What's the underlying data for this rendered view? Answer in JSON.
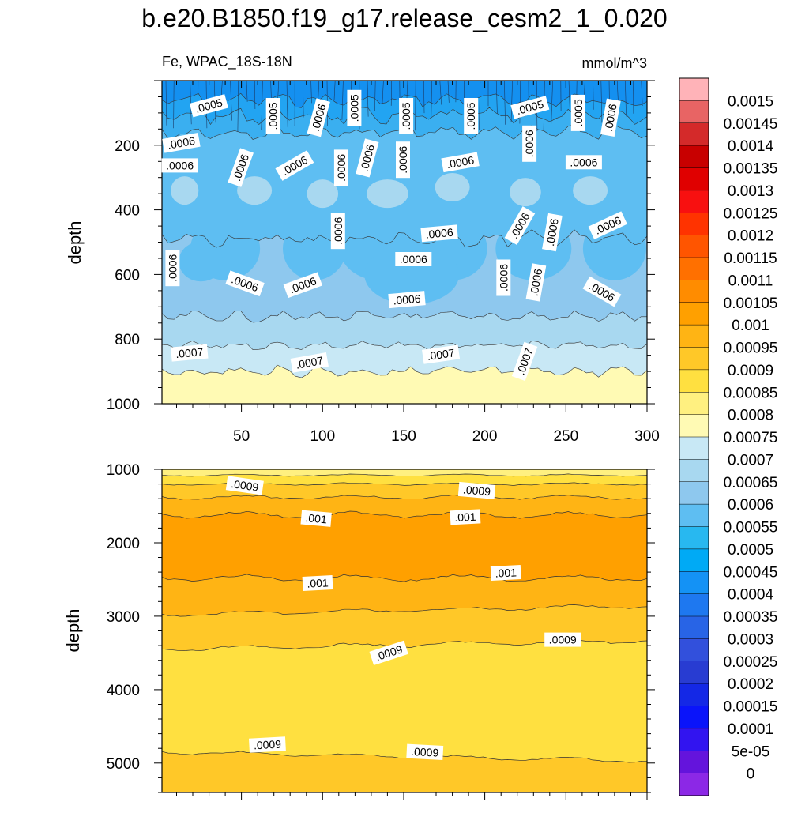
{
  "figure": {
    "title": "b.e20.B1850.f19_g17.release_cesm2_1_0.020",
    "left_subtitle": "Fe, WPAC_18S-18N",
    "right_subtitle": "mmol/m^3"
  },
  "chart_data": [
    {
      "type": "heatmap",
      "panel": "upper",
      "ylabel": "depth",
      "xlabel": "",
      "xlim": [
        1,
        300
      ],
      "ylim": [
        0,
        1000
      ],
      "y_inverted": true,
      "x_ticks": [
        "50",
        "100",
        "150",
        "200",
        "250",
        "300"
      ],
      "y_ticks": [
        "200",
        "400",
        "600",
        "800",
        "1000"
      ],
      "contour_labels": [
        {
          "text": ".0005",
          "x": 30,
          "y": 80,
          "angle": -15
        },
        {
          "text": ".0005",
          "x": 70,
          "y": 110,
          "angle": -90
        },
        {
          "text": ".0006",
          "x": 98,
          "y": 115,
          "angle": -75
        },
        {
          "text": ".0005",
          "x": 120,
          "y": 85,
          "angle": -90
        },
        {
          "text": ".0005",
          "x": 152,
          "y": 110,
          "angle": -90
        },
        {
          "text": ".0005",
          "x": 192,
          "y": 110,
          "angle": -90
        },
        {
          "text": ".0005",
          "x": 228,
          "y": 85,
          "angle": -15
        },
        {
          "text": ".0005",
          "x": 258,
          "y": 100,
          "angle": -90
        },
        {
          "text": ".0006",
          "x": 278,
          "y": 115,
          "angle": -80
        },
        {
          "text": ".0006",
          "x": 13,
          "y": 195,
          "angle": -10
        },
        {
          "text": ".0006",
          "x": 50,
          "y": 270,
          "angle": -70
        },
        {
          "text": ".0006",
          "x": 83,
          "y": 265,
          "angle": -30
        },
        {
          "text": ".0006",
          "x": 112,
          "y": 270,
          "angle": -90
        },
        {
          "text": ".0006",
          "x": 128,
          "y": 240,
          "angle": -75
        },
        {
          "text": ".0006",
          "x": 150,
          "y": 245,
          "angle": -90
        },
        {
          "text": ".0006",
          "x": 185,
          "y": 255,
          "angle": -10
        },
        {
          "text": ".0006",
          "x": 228,
          "y": 195,
          "angle": -90
        },
        {
          "text": ".0006",
          "x": 261,
          "y": 255,
          "angle": 0
        },
        {
          "text": ".0006",
          "x": 12,
          "y": 265,
          "angle": 0
        },
        {
          "text": ".0006",
          "x": 110,
          "y": 465,
          "angle": -90
        },
        {
          "text": ".0006",
          "x": 172,
          "y": 475,
          "angle": -5
        },
        {
          "text": ".0006",
          "x": 222,
          "y": 450,
          "angle": -60
        },
        {
          "text": ".0006",
          "x": 242,
          "y": 470,
          "angle": -80
        },
        {
          "text": ".0006",
          "x": 276,
          "y": 450,
          "angle": -25
        },
        {
          "text": ".0006",
          "x": 156,
          "y": 555,
          "angle": 0
        },
        {
          "text": ".0006",
          "x": 8,
          "y": 580,
          "angle": -90
        },
        {
          "text": ".0006",
          "x": 52,
          "y": 630,
          "angle": 20
        },
        {
          "text": ".0006",
          "x": 88,
          "y": 635,
          "angle": -20
        },
        {
          "text": ".0006",
          "x": 152,
          "y": 680,
          "angle": -5
        },
        {
          "text": ".0006",
          "x": 212,
          "y": 610,
          "angle": -90
        },
        {
          "text": ".0006",
          "x": 232,
          "y": 625,
          "angle": -80
        },
        {
          "text": ".0006",
          "x": 272,
          "y": 655,
          "angle": 30
        },
        {
          "text": ".0007",
          "x": 18,
          "y": 845,
          "angle": -5
        },
        {
          "text": ".0007",
          "x": 92,
          "y": 875,
          "angle": -10
        },
        {
          "text": ".0007",
          "x": 173,
          "y": 850,
          "angle": -8
        },
        {
          "text": ".0007",
          "x": 225,
          "y": 870,
          "angle": -70
        }
      ]
    },
    {
      "type": "heatmap",
      "panel": "lower",
      "ylabel": "depth",
      "xlabel": "",
      "xlim": [
        1,
        300
      ],
      "ylim": [
        1000,
        5400
      ],
      "y_inverted": true,
      "y_ticks": [
        "1000",
        "2000",
        "3000",
        "4000",
        "5000"
      ],
      "contour_labels": [
        {
          "text": ".0009",
          "x": 52,
          "y": 1230,
          "angle": 8
        },
        {
          "text": ".0009",
          "x": 195,
          "y": 1300,
          "angle": 5
        },
        {
          "text": ".001",
          "x": 96,
          "y": 1680,
          "angle": 5
        },
        {
          "text": ".001",
          "x": 188,
          "y": 1660,
          "angle": -3
        },
        {
          "text": ".001",
          "x": 97,
          "y": 2560,
          "angle": -3
        },
        {
          "text": ".001",
          "x": 213,
          "y": 2420,
          "angle": -3
        },
        {
          "text": ".0009",
          "x": 141,
          "y": 3510,
          "angle": -18
        },
        {
          "text": ".0009",
          "x": 248,
          "y": 3330,
          "angle": 0
        },
        {
          "text": ".0009",
          "x": 66,
          "y": 4760,
          "angle": -3
        },
        {
          "text": ".0009",
          "x": 163,
          "y": 4860,
          "angle": 3
        }
      ]
    }
  ],
  "colorbar": {
    "labels": [
      "0.0015",
      "0.00145",
      "0.0014",
      "0.00135",
      "0.0013",
      "0.00125",
      "0.0012",
      "0.00115",
      "0.0011",
      "0.00105",
      "0.001",
      "0.00095",
      "0.0009",
      "0.00085",
      "0.0008",
      "0.00075",
      "0.0007",
      "0.00065",
      "0.0006",
      "0.00055",
      "0.0005",
      "0.00045",
      "0.0004",
      "0.00035",
      "0.0003",
      "0.00025",
      "0.0002",
      "0.00015",
      "0.0001",
      "5e-05",
      "0"
    ],
    "colors_top_to_bottom": [
      "#FFB3B8",
      "#E86464",
      "#D42A2A",
      "#C80000",
      "#E00000",
      "#F81010",
      "#FF3300",
      "#FF5500",
      "#FF7000",
      "#FF8C00",
      "#FFA000",
      "#FFB414",
      "#FFC828",
      "#FFE040",
      "#FFF080",
      "#FFFAB4",
      "#C8E8F5",
      "#A8D8F0",
      "#8EC8EE",
      "#5EBEF2",
      "#28B8F0",
      "#00AAF5",
      "#1492F5",
      "#1E78F0",
      "#2864E6",
      "#3250DC",
      "#283CD2",
      "#1428E6",
      "#0A14FA",
      "#3214F0",
      "#6414DC",
      "#8C28E6"
    ]
  },
  "colors": {
    "upper_bands": [
      "#1490F0",
      "#22A4F2",
      "#3AAFF0",
      "#5EBEF2",
      "#8EC8EE",
      "#A8D8F0",
      "#C8E8F5",
      "#FFFAB4"
    ],
    "lower_bands": [
      "#FFF080",
      "#FFE040",
      "#FFC828",
      "#FFB414",
      "#FFA000"
    ]
  }
}
